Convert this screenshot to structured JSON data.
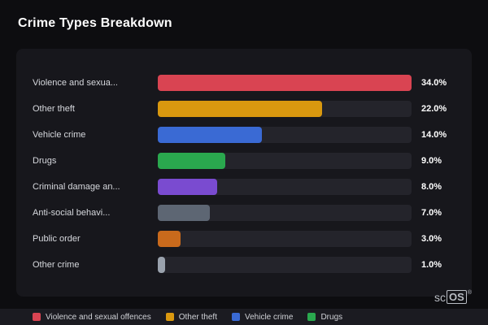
{
  "title": "Crime Types Breakdown",
  "chart_data": {
    "type": "bar",
    "orientation": "horizontal",
    "title": "Crime Types Breakdown",
    "categories": [
      "Violence and sexua...",
      "Other theft",
      "Vehicle crime",
      "Drugs",
      "Criminal damage an...",
      "Anti-social behavi...",
      "Public order",
      "Other crime"
    ],
    "values": [
      34,
      22,
      14,
      9,
      8,
      7,
      3,
      1
    ],
    "value_labels": [
      "34.0%",
      "22.0%",
      "14.0%",
      "9.0%",
      "8.0%",
      "7.0%",
      "3.0%",
      "1.0%"
    ],
    "colors": [
      "#d94452",
      "#d9980f",
      "#3a6ad4",
      "#2aa84e",
      "#7a4bd0",
      "#5d6673",
      "#c96a1c",
      "#9aa2ad"
    ],
    "xlim": [
      0,
      34
    ],
    "max": 34,
    "grid": false,
    "legend_position": "bottom"
  },
  "legend": {
    "items": [
      {
        "label": "Violence and sexual offences",
        "color": "#d94452"
      },
      {
        "label": "Other theft",
        "color": "#d9980f"
      },
      {
        "label": "Vehicle crime",
        "color": "#3a6ad4"
      },
      {
        "label": "Drugs",
        "color": "#2aa84e"
      }
    ]
  },
  "logo": {
    "prefix": "sc",
    "box": "OS",
    "reg": "®"
  }
}
